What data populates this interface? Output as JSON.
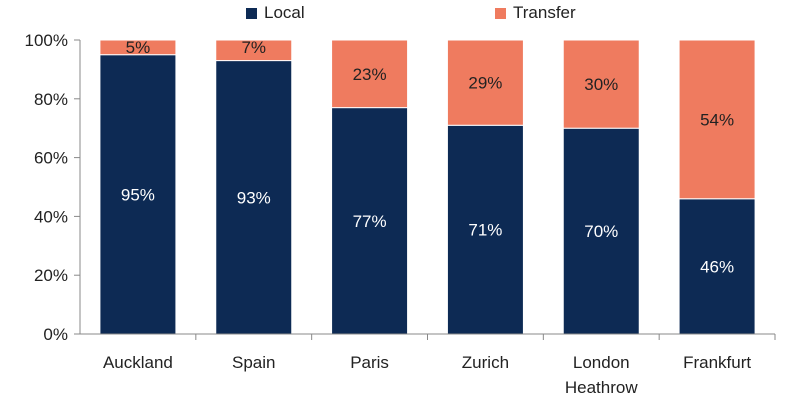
{
  "chart_data": {
    "type": "bar",
    "stacked": true,
    "percent": true,
    "categories": [
      "Auckland",
      "Spain",
      "Paris",
      "Zurich",
      "London Heathrow",
      "Frankfurt"
    ],
    "series": [
      {
        "name": "Local",
        "color": "#0d2a54",
        "values": [
          95,
          93,
          77,
          71,
          70,
          46
        ],
        "labels": [
          "95%",
          "93%",
          "77%",
          "71%",
          "70%",
          "46%"
        ]
      },
      {
        "name": "Transfer",
        "color": "#ef7b5f",
        "values": [
          5,
          7,
          23,
          29,
          30,
          54
        ],
        "labels": [
          "5%",
          "7%",
          "23%",
          "29%",
          "30%",
          "54%"
        ]
      }
    ],
    "ylim": [
      0,
      100
    ],
    "yticks": [
      0,
      20,
      40,
      60,
      80,
      100
    ],
    "ytick_labels": [
      "0%",
      "20%",
      "40%",
      "60%",
      "80%",
      "100%"
    ],
    "grid": false,
    "legend_position": "top"
  },
  "legend": {
    "local": "Local",
    "transfer": "Transfer"
  }
}
